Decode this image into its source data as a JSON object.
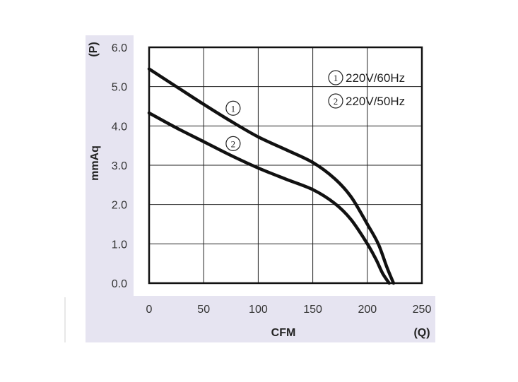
{
  "chart_data": {
    "type": "line",
    "xlabel": "CFM",
    "xunit": "(Q)",
    "ylabel": "mmAq",
    "yunit": "(P)",
    "xlim": [
      0,
      250
    ],
    "ylim": [
      0,
      6
    ],
    "xticks": [
      "0",
      "50",
      "100",
      "150",
      "200",
      "250"
    ],
    "yticks": [
      "0.0",
      "1.0",
      "2.0",
      "3.0",
      "4.0",
      "5.0",
      "6.0"
    ],
    "grid": true,
    "legend": [
      {
        "marker": "1",
        "label": "220V/60Hz"
      },
      {
        "marker": "2",
        "label": "220V/50Hz"
      }
    ],
    "series": [
      {
        "name": "220V/60Hz",
        "marker": "1",
        "x": [
          0,
          25,
          50,
          75,
          100,
          125,
          150,
          170,
          185,
          200,
          210,
          218,
          224
        ],
        "y": [
          5.45,
          5.0,
          4.55,
          4.12,
          3.72,
          3.4,
          3.07,
          2.66,
          2.2,
          1.5,
          1.0,
          0.4,
          0.0
        ]
      },
      {
        "name": "220V/50Hz",
        "marker": "2",
        "x": [
          0,
          25,
          50,
          75,
          100,
          125,
          150,
          170,
          185,
          200,
          208,
          214,
          220
        ],
        "y": [
          4.33,
          3.95,
          3.6,
          3.25,
          2.93,
          2.65,
          2.38,
          2.03,
          1.62,
          1.0,
          0.6,
          0.25,
          0.0
        ]
      }
    ],
    "curve_markers": [
      {
        "marker": "1",
        "x": 77,
        "y": 4.45
      },
      {
        "marker": "2",
        "x": 77,
        "y": 3.55
      }
    ]
  }
}
